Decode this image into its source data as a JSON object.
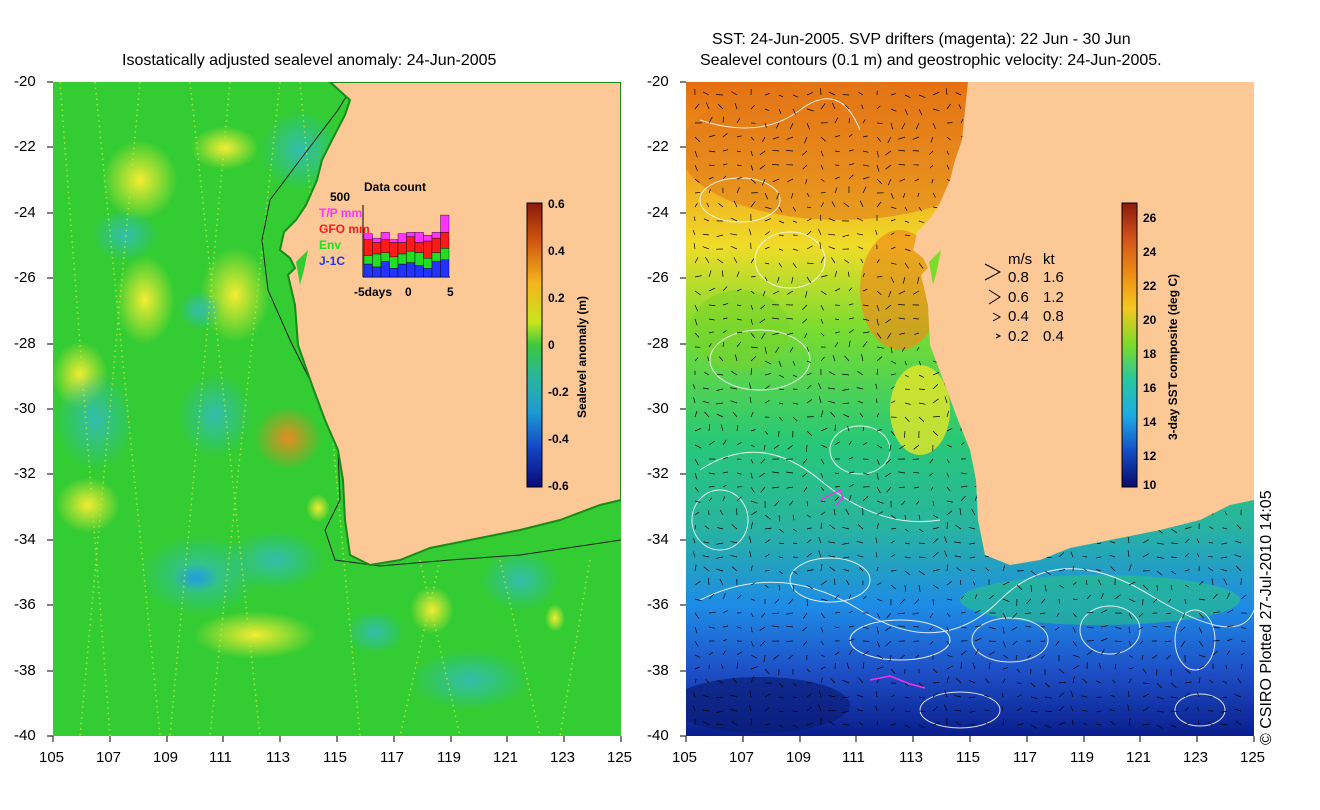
{
  "left_panel": {
    "title": "Isostatically adjusted sealevel anomaly: 24-Jun-2005",
    "lat_ticks": [
      "-20",
      "-22",
      "-24",
      "-26",
      "-28",
      "-30",
      "-32",
      "-34",
      "-36",
      "-38",
      "-40"
    ],
    "lon_ticks": [
      "105",
      "107",
      "109",
      "111",
      "113",
      "115",
      "117",
      "119",
      "121",
      "123",
      "125"
    ],
    "data_count": {
      "title": "Data count",
      "max_label": "500",
      "x_ticks": [
        "-5days",
        "0",
        "5"
      ],
      "legend": [
        {
          "label": "T/P mm",
          "color": "#ff33ff"
        },
        {
          "label": "GFO mm",
          "color": "#ff1a1a"
        },
        {
          "label": "Env",
          "color": "#22dd22"
        },
        {
          "label": "J-1C",
          "color": "#2233ff"
        }
      ],
      "bars": [
        {
          "jc": 90,
          "env": 60,
          "gfo": 110,
          "tp": 40
        },
        {
          "jc": 70,
          "env": 90,
          "gfo": 80,
          "tp": 30
        },
        {
          "jc": 110,
          "env": 60,
          "gfo": 90,
          "tp": 50
        },
        {
          "jc": 60,
          "env": 80,
          "gfo": 100,
          "tp": 20
        },
        {
          "jc": 90,
          "env": 70,
          "gfo": 80,
          "tp": 60
        },
        {
          "jc": 100,
          "env": 80,
          "gfo": 100,
          "tp": 30
        },
        {
          "jc": 80,
          "env": 90,
          "gfo": 70,
          "tp": 70
        },
        {
          "jc": 60,
          "env": 70,
          "gfo": 120,
          "tp": 40
        },
        {
          "jc": 110,
          "env": 60,
          "gfo": 100,
          "tp": 40
        },
        {
          "jc": 120,
          "env": 80,
          "gfo": 110,
          "tp": 120
        }
      ]
    },
    "colorbar": {
      "label": "Sealevel anomaly (m)",
      "ticks": [
        "0.6",
        "0.4",
        "0.2",
        "0",
        "-0.2",
        "-0.4",
        "-0.6"
      ]
    }
  },
  "right_panel": {
    "title_line1": "SST: 24-Jun-2005. SVP drifters (magenta): 22 Jun - 30 Jun",
    "title_line2": "Sealevel contours (0.1 m) and geostrophic velocity: 24-Jun-2005.",
    "lat_ticks": [
      "-20",
      "-22",
      "-24",
      "-26",
      "-28",
      "-30",
      "-32",
      "-34",
      "-36",
      "-38",
      "-40"
    ],
    "lon_ticks": [
      "105",
      "107",
      "109",
      "111",
      "113",
      "115",
      "117",
      "119",
      "121",
      "123",
      "125"
    ],
    "speed_legend": {
      "header_ms": "m/s",
      "header_kt": "kt",
      "rows": [
        {
          "ms": "0.8",
          "kt": "1.6"
        },
        {
          "ms": "0.6",
          "kt": "1.2"
        },
        {
          "ms": "0.4",
          "kt": "0.8"
        },
        {
          "ms": "0.2",
          "kt": "0.4"
        }
      ]
    },
    "colorbar": {
      "label": "3-day SST composite (deg C)",
      "ticks": [
        "26",
        "24",
        "22",
        "20",
        "18",
        "16",
        "14",
        "12",
        "10"
      ]
    }
  },
  "credit": "© CSIRO Plotted 27-Jul-2010 14:05",
  "colors": {
    "land": "#fbc896",
    "sla_ocean": "#33cc33",
    "sst_warm": "#f08010",
    "sst_cold": "#1e4fc8"
  }
}
